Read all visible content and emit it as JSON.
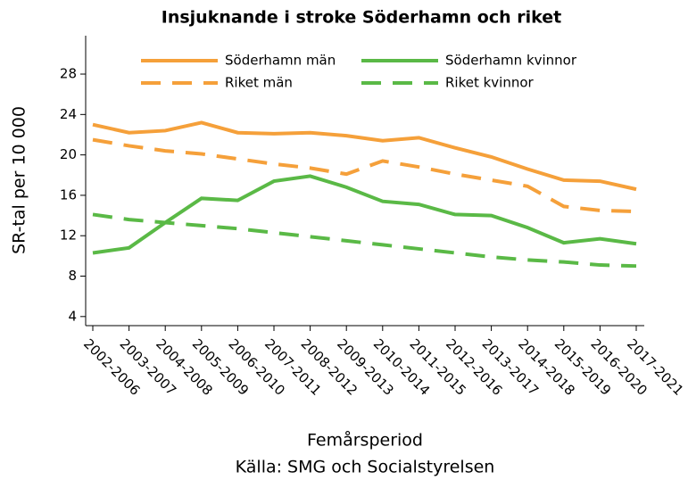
{
  "chart_data": {
    "type": "line",
    "title": "Insjuknande i stroke Söderhamn och riket",
    "y_label": "SR-tal per 10 000",
    "x_label": "Femårsperiod",
    "source": "Källa: SMG och Socialstyrelsen",
    "categories": [
      "2002-2006",
      "2003-2007",
      "2004-2008",
      "2005-2009",
      "2006-2010",
      "2007-2011",
      "2008-2012",
      "2009-2013",
      "2010-2014",
      "2011-2015",
      "2012-2016",
      "2013-2017",
      "2014-2018",
      "2015-2019",
      "2016-2020",
      "2017-2021"
    ],
    "series": [
      {
        "name": "Söderhamn män",
        "color": "#f5a03a",
        "dashed": false,
        "values": [
          23.0,
          22.2,
          22.4,
          23.2,
          22.2,
          22.1,
          22.2,
          21.9,
          21.4,
          21.7,
          20.7,
          19.8,
          18.6,
          17.5,
          17.4,
          16.6
        ]
      },
      {
        "name": "Söderhamn kvinnor",
        "color": "#5ab946",
        "dashed": false,
        "values": [
          10.3,
          10.8,
          13.3,
          15.7,
          15.5,
          17.4,
          17.9,
          16.8,
          15.4,
          15.1,
          14.1,
          14.0,
          12.8,
          11.3,
          11.7,
          11.2
        ]
      },
      {
        "name": "Riket män",
        "color": "#f5a03a",
        "dashed": true,
        "values": [
          21.5,
          20.9,
          20.4,
          20.1,
          19.6,
          19.1,
          18.7,
          18.1,
          19.4,
          18.8,
          18.1,
          17.5,
          16.9,
          14.9,
          14.5,
          14.4
        ]
      },
      {
        "name": "Riket kvinnor",
        "color": "#5ab946",
        "dashed": true,
        "values": [
          14.1,
          13.6,
          13.3,
          13.0,
          12.7,
          12.3,
          11.9,
          11.5,
          11.1,
          10.7,
          10.3,
          9.9,
          9.6,
          9.4,
          9.1,
          9.0
        ]
      }
    ],
    "ylim": [
      3.1,
      31.8
    ],
    "yticks": [
      4,
      8,
      12,
      16,
      20,
      24,
      28
    ],
    "legend": "top"
  }
}
